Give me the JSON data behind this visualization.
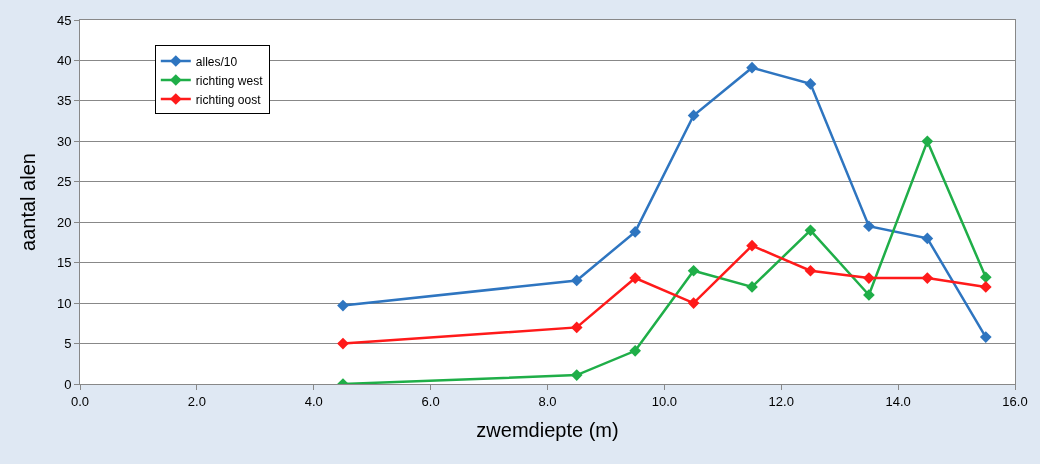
{
  "chart_data": {
    "type": "line",
    "xlabel": "zwemdiepte (m)",
    "ylabel": "aantal alen",
    "x": [
      4.5,
      8.5,
      9.5,
      10.5,
      11.5,
      12.5,
      13.5,
      14.5,
      15.5
    ],
    "series": [
      {
        "name": "alles/10",
        "color": "#2e75c0",
        "values": [
          9.7,
          12.8,
          18.8,
          33.2,
          39.1,
          37.1,
          19.5,
          18.0,
          5.8
        ]
      },
      {
        "name": "richting west",
        "color": "#1fae48",
        "values": [
          0,
          1.1,
          4.1,
          14,
          12,
          19,
          11,
          30,
          13.2
        ]
      },
      {
        "name": "richting oost",
        "color": "#ff1a1a",
        "values": [
          5,
          7,
          13.1,
          10,
          17.1,
          14,
          13.1,
          13.1,
          12
        ]
      }
    ],
    "xlim": [
      0,
      16
    ],
    "xticks": [
      {
        "value": 0,
        "label": "0.0"
      },
      {
        "value": 2,
        "label": "2.0"
      },
      {
        "value": 4,
        "label": "4.0"
      },
      {
        "value": 6,
        "label": "6.0"
      },
      {
        "value": 8,
        "label": "8.0"
      },
      {
        "value": 10,
        "label": "10.0"
      },
      {
        "value": 12,
        "label": "12.0"
      },
      {
        "value": 14,
        "label": "14.0"
      },
      {
        "value": 16,
        "label": "16.0"
      }
    ],
    "ylim": [
      0,
      45
    ],
    "yticks": [
      0,
      5,
      10,
      15,
      20,
      25,
      30,
      35,
      40,
      45
    ],
    "grid": "y",
    "legend": "top left",
    "marker": "diamond",
    "line_style": "solid"
  }
}
